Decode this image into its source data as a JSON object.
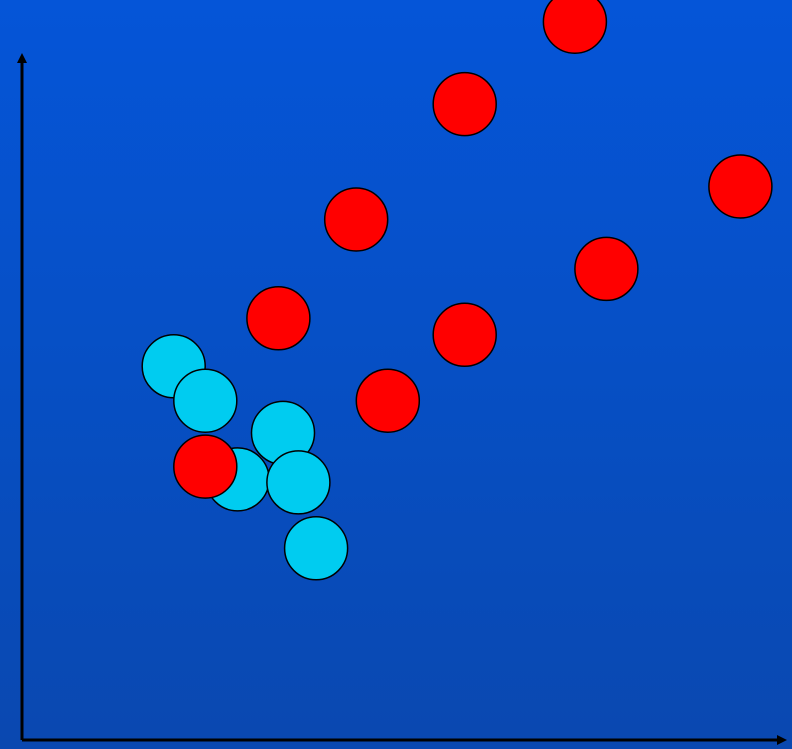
{
  "chart_data": {
    "type": "scatter",
    "title": "",
    "xlabel": "",
    "ylabel": "",
    "grid": false,
    "legend": "none",
    "axis_ticks": false,
    "colors": {
      "background_top": "#0555d8",
      "background_bottom": "#0a48b0",
      "axis": "#000000",
      "marker_outline": "#000000"
    },
    "xlim": [
      0,
      100
    ],
    "ylim": [
      0,
      100
    ],
    "series": [
      {
        "color": "#00ccf0",
        "points": [
          {
            "x": 19.7,
            "y": 51.1
          },
          {
            "x": 23.8,
            "y": 46.5
          },
          {
            "x": 33.9,
            "y": 42.2
          },
          {
            "x": 28.0,
            "y": 36.0
          },
          {
            "x": 35.9,
            "y": 35.6
          },
          {
            "x": 38.2,
            "y": 26.8
          }
        ]
      },
      {
        "color": "#ff0000",
        "points": [
          {
            "x": 71.8,
            "y": 97.1
          },
          {
            "x": 57.5,
            "y": 86.1
          },
          {
            "x": 93.3,
            "y": 75.1
          },
          {
            "x": 43.4,
            "y": 70.7
          },
          {
            "x": 75.9,
            "y": 64.1
          },
          {
            "x": 33.3,
            "y": 57.5
          },
          {
            "x": 57.5,
            "y": 55.3
          },
          {
            "x": 47.5,
            "y": 46.5
          },
          {
            "x": 23.8,
            "y": 37.7
          }
        ]
      }
    ]
  }
}
